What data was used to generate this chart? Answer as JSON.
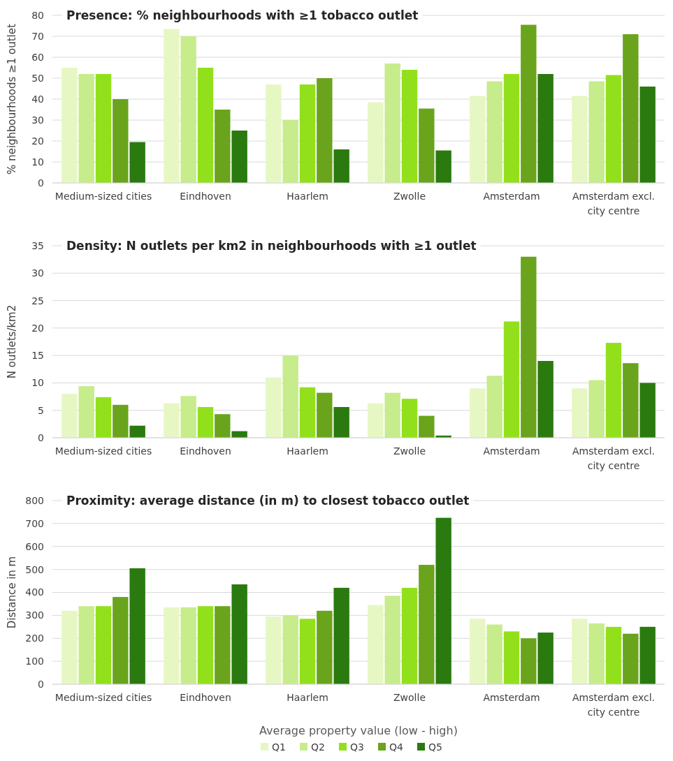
{
  "chart_data": [
    {
      "type": "bar",
      "title": "Presence: % neighbourhoods with ≥1 tobacco outlet",
      "ylabel": "% neighbourhoods ≥1 outlet",
      "categories": [
        "Medium-sized cities",
        "Eindhoven",
        "Haarlem",
        "Zwolle",
        "Amsterdam",
        "Amsterdam excl. city centre"
      ],
      "ylim": [
        0,
        80
      ],
      "yticks": [
        0,
        10,
        20,
        30,
        40,
        50,
        60,
        70,
        80
      ],
      "grid": "y",
      "legend": false,
      "series": [
        {
          "color": "#e6f7c4",
          "values": [
            55,
            73.5,
            47,
            38.5,
            41.5,
            41.5
          ]
        },
        {
          "color": "#c6ec8c",
          "values": [
            52,
            70,
            30,
            57,
            48.5,
            48.5
          ]
        },
        {
          "color": "#92e01c",
          "values": [
            52,
            55,
            47,
            54,
            52,
            51.5
          ]
        },
        {
          "color": "#6aa41c",
          "values": [
            40,
            35,
            50,
            35.5,
            75.5,
            71
          ]
        },
        {
          "color": "#2a7a10",
          "values": [
            19.5,
            25,
            16,
            15.5,
            52,
            46
          ]
        }
      ]
    },
    {
      "type": "bar",
      "title": "Density: N outlets per km2 in neighbourhoods with ≥1 outlet",
      "ylabel": "N outlets/km2",
      "categories": [
        "Medium-sized cities",
        "Eindhoven",
        "Haarlem",
        "Zwolle",
        "Amsterdam",
        "Amsterdam excl. city centre"
      ],
      "ylim": [
        0,
        35
      ],
      "yticks": [
        0,
        5,
        10,
        15,
        20,
        25,
        30,
        35
      ],
      "grid": "y",
      "legend": false,
      "series": [
        {
          "color": "#e6f7c4",
          "values": [
            8,
            6.3,
            11,
            6.3,
            9,
            9
          ]
        },
        {
          "color": "#c6ec8c",
          "values": [
            9.4,
            7.6,
            15,
            8.2,
            11.3,
            10.5
          ]
        },
        {
          "color": "#92e01c",
          "values": [
            7.4,
            5.6,
            9.2,
            7.1,
            21.2,
            17.3
          ]
        },
        {
          "color": "#6aa41c",
          "values": [
            6,
            4.3,
            8.2,
            4,
            33,
            13.6
          ]
        },
        {
          "color": "#2a7a10",
          "values": [
            2.2,
            1.2,
            5.6,
            0.4,
            14,
            10
          ]
        }
      ]
    },
    {
      "type": "bar",
      "title": "Proximity: average distance (in m) to closest tobacco outlet",
      "ylabel": "Distance in m",
      "xlabel": "Average property value (low - high)",
      "categories": [
        "Medium-sized cities",
        "Eindhoven",
        "Haarlem",
        "Zwolle",
        "Amsterdam",
        "Amsterdam excl. city centre"
      ],
      "ylim": [
        0,
        800
      ],
      "yticks": [
        0,
        100,
        200,
        300,
        400,
        500,
        600,
        700,
        800
      ],
      "grid": "y",
      "legend": "bottom",
      "series": [
        {
          "name": "Q1",
          "color": "#e6f7c4",
          "values": [
            320,
            335,
            295,
            345,
            285,
            285
          ]
        },
        {
          "name": "Q2",
          "color": "#c6ec8c",
          "values": [
            340,
            335,
            300,
            385,
            260,
            265
          ]
        },
        {
          "name": "Q3",
          "color": "#92e01c",
          "values": [
            340,
            340,
            285,
            420,
            230,
            250
          ]
        },
        {
          "name": "Q4",
          "color": "#6aa41c",
          "values": [
            380,
            340,
            320,
            520,
            200,
            220
          ]
        },
        {
          "name": "Q5",
          "color": "#2a7a10",
          "values": [
            505,
            435,
            420,
            725,
            225,
            250
          ]
        }
      ]
    }
  ]
}
